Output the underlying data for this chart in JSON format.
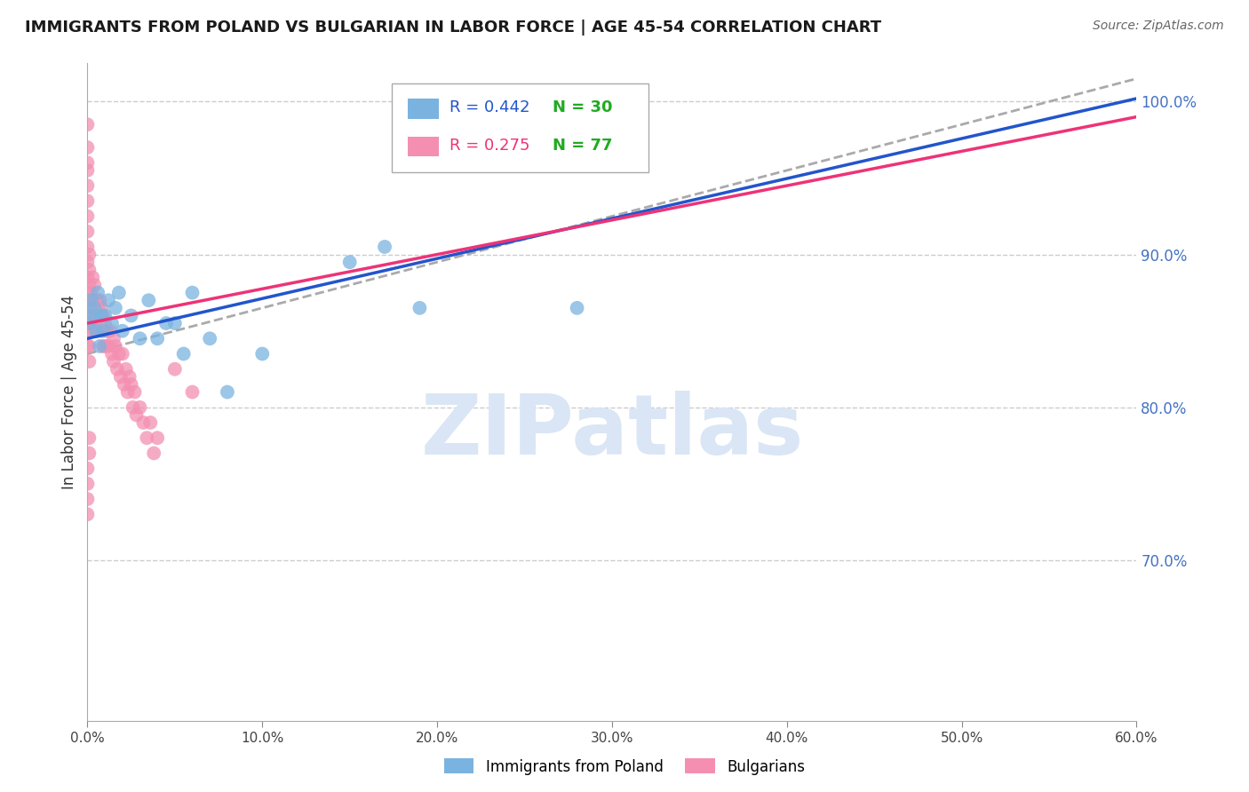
{
  "title": "IMMIGRANTS FROM POLAND VS BULGARIAN IN LABOR FORCE | AGE 45-54 CORRELATION CHART",
  "source": "Source: ZipAtlas.com",
  "ylabel": "In Labor Force | Age 45-54",
  "xlim": [
    0.0,
    0.6
  ],
  "ylim": [
    0.595,
    1.025
  ],
  "xticks": [
    0.0,
    0.1,
    0.2,
    0.3,
    0.4,
    0.5,
    0.6
  ],
  "yticks_right": [
    0.7,
    0.8,
    0.9,
    1.0
  ],
  "poland_R": 0.442,
  "poland_N": 30,
  "bulgarian_R": 0.275,
  "bulgarian_N": 77,
  "poland_color": "#7ab3e0",
  "bulgarian_color": "#f48fb1",
  "poland_line_color": "#2255cc",
  "bulgarian_line_color": "#ee3377",
  "dashed_line_color": "#aaaaaa",
  "legend_N_color": "#22aa22",
  "watermark": "ZIPatlas",
  "watermark_color": "#dae6f5",
  "poland_x": [
    0.001,
    0.002,
    0.003,
    0.004,
    0.005,
    0.006,
    0.007,
    0.008,
    0.009,
    0.01,
    0.012,
    0.014,
    0.016,
    0.018,
    0.02,
    0.025,
    0.03,
    0.035,
    0.04,
    0.045,
    0.05,
    0.055,
    0.06,
    0.07,
    0.08,
    0.1,
    0.15,
    0.17,
    0.19,
    0.28
  ],
  "poland_y": [
    0.855,
    0.87,
    0.86,
    0.865,
    0.85,
    0.875,
    0.84,
    0.86,
    0.85,
    0.86,
    0.87,
    0.855,
    0.865,
    0.875,
    0.85,
    0.86,
    0.845,
    0.87,
    0.845,
    0.855,
    0.855,
    0.835,
    0.875,
    0.845,
    0.81,
    0.835,
    0.895,
    0.905,
    0.865,
    0.865
  ],
  "bulgarian_x": [
    0.001,
    0.001,
    0.002,
    0.002,
    0.003,
    0.003,
    0.004,
    0.004,
    0.005,
    0.005,
    0.006,
    0.006,
    0.007,
    0.007,
    0.008,
    0.008,
    0.009,
    0.009,
    0.01,
    0.01,
    0.011,
    0.012,
    0.013,
    0.014,
    0.015,
    0.015,
    0.016,
    0.017,
    0.018,
    0.019,
    0.02,
    0.021,
    0.022,
    0.023,
    0.024,
    0.025,
    0.026,
    0.027,
    0.028,
    0.03,
    0.032,
    0.034,
    0.036,
    0.038,
    0.04,
    0.0,
    0.0,
    0.0,
    0.0,
    0.0,
    0.0,
    0.0,
    0.0,
    0.0,
    0.0,
    0.0,
    0.0,
    0.0,
    0.0,
    0.0,
    0.0,
    0.0,
    0.0,
    0.0,
    0.0,
    0.001,
    0.001,
    0.001,
    0.001,
    0.001,
    0.001,
    0.001,
    0.001,
    0.001,
    0.001,
    0.05,
    0.06
  ],
  "bulgarian_y": [
    0.87,
    0.86,
    0.875,
    0.855,
    0.885,
    0.87,
    0.88,
    0.86,
    0.87,
    0.855,
    0.865,
    0.85,
    0.87,
    0.855,
    0.865,
    0.85,
    0.86,
    0.84,
    0.855,
    0.84,
    0.85,
    0.84,
    0.85,
    0.835,
    0.845,
    0.83,
    0.84,
    0.825,
    0.835,
    0.82,
    0.835,
    0.815,
    0.825,
    0.81,
    0.82,
    0.815,
    0.8,
    0.81,
    0.795,
    0.8,
    0.79,
    0.78,
    0.79,
    0.77,
    0.78,
    0.985,
    0.97,
    0.96,
    0.955,
    0.945,
    0.935,
    0.925,
    0.915,
    0.905,
    0.895,
    0.885,
    0.875,
    0.865,
    0.855,
    0.85,
    0.84,
    0.76,
    0.75,
    0.74,
    0.73,
    0.9,
    0.89,
    0.88,
    0.87,
    0.86,
    0.85,
    0.84,
    0.83,
    0.78,
    0.77,
    0.825,
    0.81
  ]
}
